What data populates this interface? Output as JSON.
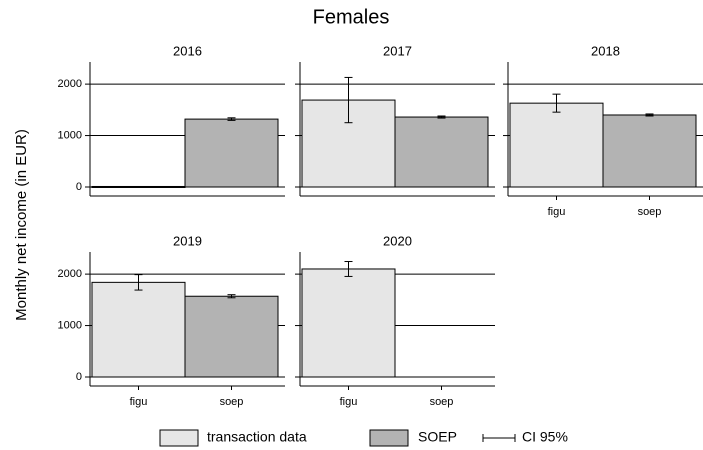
{
  "title": "Females",
  "ylabel": "Monthly net income (in EUR)",
  "legend": [
    {
      "label": "transaction data",
      "color": "#e6e6e6"
    },
    {
      "label": "SOEP",
      "color": "#b3b3b3"
    },
    {
      "label": "CI 95%"
    }
  ],
  "chart_data": [
    {
      "type": "bar",
      "title": "2016",
      "categories": [
        "figu",
        "soep"
      ],
      "values": [
        10,
        1320
      ],
      "errors": [
        null,
        25
      ],
      "colors": [
        "#e6e6e6",
        "#b3b3b3"
      ],
      "ylim": [
        -175,
        2430
      ],
      "yticks": [
        0,
        1000,
        2000
      ],
      "grid": true,
      "show_ytick_labels": true,
      "show_xtick_labels": false
    },
    {
      "type": "bar",
      "title": "2017",
      "categories": [
        "figu",
        "soep"
      ],
      "values": [
        1690,
        1360
      ],
      "errors": [
        440,
        20
      ],
      "colors": [
        "#e6e6e6",
        "#b3b3b3"
      ],
      "ylim": [
        -175,
        2430
      ],
      "yticks": [
        0,
        1000,
        2000
      ],
      "grid": true,
      "show_ytick_labels": false,
      "show_xtick_labels": false
    },
    {
      "type": "bar",
      "title": "2018",
      "categories": [
        "figu",
        "soep"
      ],
      "values": [
        1630,
        1400
      ],
      "errors": [
        175,
        20
      ],
      "colors": [
        "#e6e6e6",
        "#b3b3b3"
      ],
      "ylim": [
        -175,
        2430
      ],
      "yticks": [
        0,
        1000,
        2000
      ],
      "grid": true,
      "show_ytick_labels": false,
      "show_xtick_labels": true
    },
    {
      "type": "bar",
      "title": "2019",
      "categories": [
        "figu",
        "soep"
      ],
      "values": [
        1840,
        1570
      ],
      "errors": [
        150,
        30
      ],
      "colors": [
        "#e6e6e6",
        "#b3b3b3"
      ],
      "ylim": [
        -175,
        2430
      ],
      "yticks": [
        0,
        1000,
        2000
      ],
      "grid": true,
      "show_ytick_labels": true,
      "show_xtick_labels": true
    },
    {
      "type": "bar",
      "title": "2020",
      "categories": [
        "figu",
        "soep"
      ],
      "values": [
        2100,
        null
      ],
      "errors": [
        145,
        null
      ],
      "colors": [
        "#e6e6e6",
        "#b3b3b3"
      ],
      "ylim": [
        -175,
        2430
      ],
      "yticks": [
        0,
        1000,
        2000
      ],
      "grid": true,
      "show_ytick_labels": false,
      "show_xtick_labels": true
    }
  ]
}
